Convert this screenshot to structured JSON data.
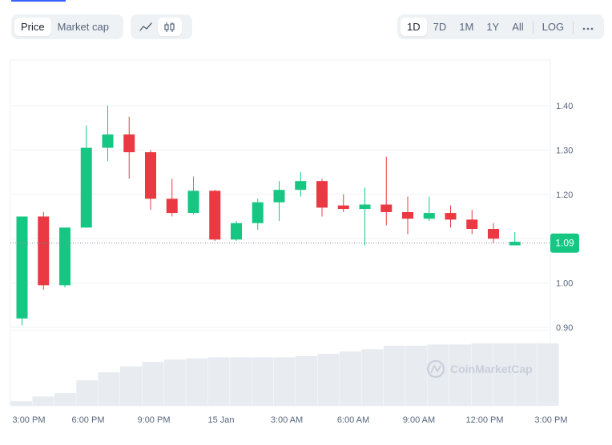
{
  "toolbar": {
    "type_tabs": [
      {
        "label": "Price",
        "active": true
      },
      {
        "label": "Market cap",
        "active": false
      }
    ],
    "view_modes": [
      {
        "icon": "line-chart-icon",
        "active": false
      },
      {
        "icon": "candlestick-chart-icon",
        "active": true
      }
    ],
    "ranges": [
      {
        "label": "1D",
        "active": true
      },
      {
        "label": "7D",
        "active": false
      },
      {
        "label": "1M",
        "active": false
      },
      {
        "label": "1Y",
        "active": false
      },
      {
        "label": "All",
        "active": false
      }
    ],
    "log_label": "LOG",
    "more_icon": "ellipsis-icon"
  },
  "watermark": "CoinMarketCap",
  "colors": {
    "up": "#16c784",
    "down": "#ea3943",
    "grid": "#eff2f5",
    "volume": "#e8ebf0",
    "current_price_bg": "#16c784"
  },
  "chart_data": {
    "type": "candlestick",
    "x_ticks": [
      "3:00 PM",
      "6:00 PM",
      "9:00 PM",
      "15 Jan",
      "3:00 AM",
      "6:00 AM",
      "9:00 AM",
      "12:00 PM",
      "3:00 PM"
    ],
    "y_ticks": [
      0.9,
      1.0,
      1.1,
      1.2,
      1.3,
      1.4
    ],
    "y_tick_labels": [
      "0.90",
      "1.00",
      "",
      "1.20",
      "1.30",
      "1.40"
    ],
    "ylim": [
      0.88,
      1.49
    ],
    "current_price": 1.09,
    "current_price_label": "1.09",
    "candles": [
      {
        "open": 0.92,
        "high": 1.15,
        "low": 0.905,
        "close": 1.15
      },
      {
        "open": 1.15,
        "high": 1.16,
        "low": 0.985,
        "close": 0.995
      },
      {
        "open": 0.995,
        "high": 1.125,
        "low": 0.99,
        "close": 1.125
      },
      {
        "open": 1.125,
        "high": 1.355,
        "low": 1.125,
        "close": 1.305
      },
      {
        "open": 1.305,
        "high": 1.4,
        "low": 1.275,
        "close": 1.335
      },
      {
        "open": 1.335,
        "high": 1.375,
        "low": 1.235,
        "close": 1.295
      },
      {
        "open": 1.295,
        "high": 1.3,
        "low": 1.165,
        "close": 1.19
      },
      {
        "open": 1.19,
        "high": 1.235,
        "low": 1.15,
        "close": 1.158
      },
      {
        "open": 1.158,
        "high": 1.24,
        "low": 1.155,
        "close": 1.208
      },
      {
        "open": 1.208,
        "high": 1.21,
        "low": 1.095,
        "close": 1.098
      },
      {
        "open": 1.098,
        "high": 1.14,
        "low": 1.095,
        "close": 1.135
      },
      {
        "open": 1.135,
        "high": 1.19,
        "low": 1.12,
        "close": 1.182
      },
      {
        "open": 1.182,
        "high": 1.23,
        "low": 1.14,
        "close": 1.21
      },
      {
        "open": 1.21,
        "high": 1.25,
        "low": 1.195,
        "close": 1.23
      },
      {
        "open": 1.23,
        "high": 1.235,
        "low": 1.15,
        "close": 1.17
      },
      {
        "open": 1.175,
        "high": 1.2,
        "low": 1.16,
        "close": 1.167
      },
      {
        "open": 1.167,
        "high": 1.215,
        "low": 1.085,
        "close": 1.177
      },
      {
        "open": 1.177,
        "high": 1.285,
        "low": 1.13,
        "close": 1.16
      },
      {
        "open": 1.16,
        "high": 1.195,
        "low": 1.11,
        "close": 1.145
      },
      {
        "open": 1.145,
        "high": 1.195,
        "low": 1.14,
        "close": 1.158
      },
      {
        "open": 1.158,
        "high": 1.175,
        "low": 1.125,
        "close": 1.143
      },
      {
        "open": 1.143,
        "high": 1.165,
        "low": 1.11,
        "close": 1.122
      },
      {
        "open": 1.122,
        "high": 1.135,
        "low": 1.09,
        "close": 1.1
      },
      {
        "open": 1.085,
        "high": 1.115,
        "low": 1.085,
        "close": 1.093
      }
    ],
    "volume": [
      2,
      4,
      5.5,
      11,
      14.5,
      17,
      19,
      20,
      20.5,
      21,
      21,
      21,
      21,
      21.5,
      22.5,
      23.5,
      24.5,
      26,
      26,
      26.5,
      26.5,
      27,
      27,
      27,
      27
    ]
  }
}
